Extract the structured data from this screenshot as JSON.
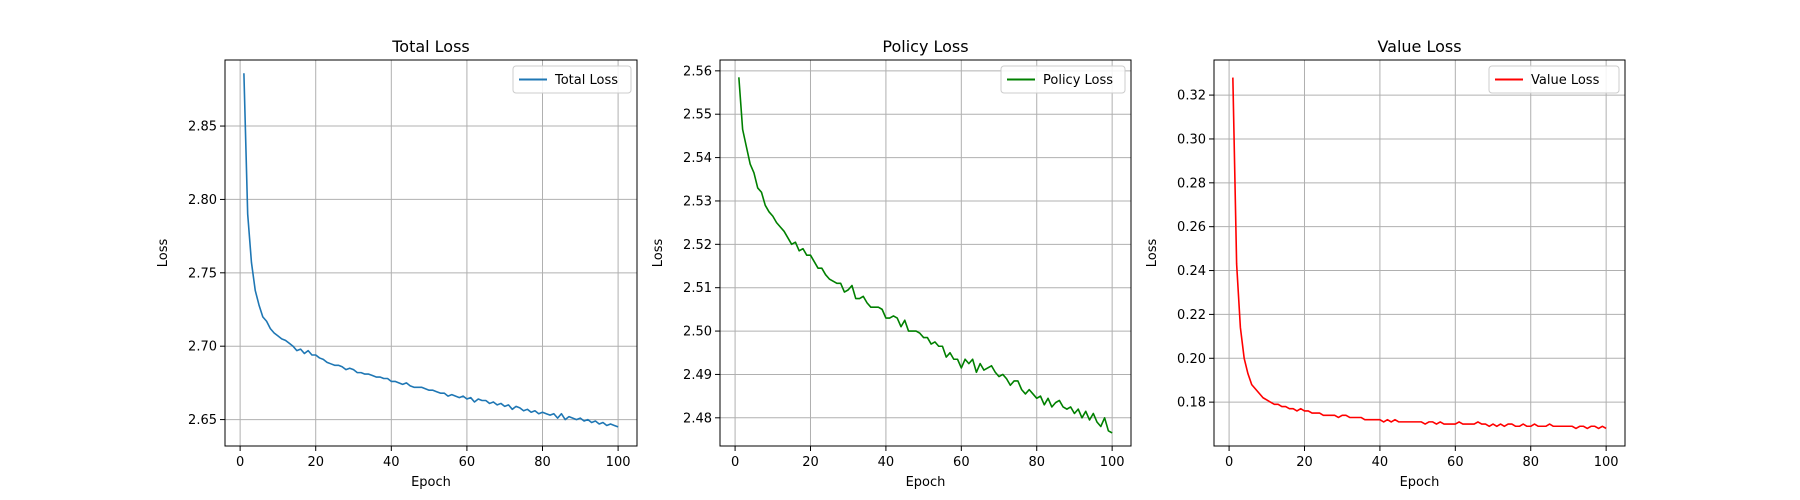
{
  "chart_data": [
    {
      "type": "line",
      "title": "Total Loss",
      "xlabel": "Epoch",
      "ylabel": "Loss",
      "xlim": [
        -4,
        105
      ],
      "ylim": [
        2.632,
        2.895
      ],
      "xticks": [
        0,
        20,
        40,
        60,
        80,
        100
      ],
      "yticks": [
        2.65,
        2.7,
        2.75,
        2.8,
        2.85
      ],
      "ytick_labels": [
        "2.65",
        "2.70",
        "2.75",
        "2.80",
        "2.85"
      ],
      "grid": true,
      "legend_position": "top-right",
      "series": [
        {
          "name": "Total Loss",
          "color": "#1f77b4",
          "x": [
            1,
            2,
            3,
            4,
            5,
            6,
            7,
            8,
            9,
            10,
            11,
            12,
            13,
            14,
            15,
            16,
            17,
            18,
            19,
            20,
            21,
            22,
            23,
            24,
            25,
            26,
            27,
            28,
            29,
            30,
            31,
            32,
            33,
            34,
            35,
            36,
            37,
            38,
            39,
            40,
            41,
            42,
            43,
            44,
            45,
            46,
            47,
            48,
            49,
            50,
            51,
            52,
            53,
            54,
            55,
            56,
            57,
            58,
            59,
            60,
            61,
            62,
            63,
            64,
            65,
            66,
            67,
            68,
            69,
            70,
            71,
            72,
            73,
            74,
            75,
            76,
            77,
            78,
            79,
            80,
            81,
            82,
            83,
            84,
            85,
            86,
            87,
            88,
            89,
            90,
            91,
            92,
            93,
            94,
            95,
            96,
            97,
            98,
            99,
            100
          ],
          "y": [
            2.886,
            2.79,
            2.757,
            2.738,
            2.728,
            2.72,
            2.717,
            2.712,
            2.709,
            2.707,
            2.705,
            2.704,
            2.702,
            2.7,
            2.697,
            2.698,
            2.695,
            2.697,
            2.694,
            2.694,
            2.692,
            2.691,
            2.689,
            2.688,
            2.687,
            2.687,
            2.686,
            2.684,
            2.685,
            2.684,
            2.682,
            2.682,
            2.681,
            2.681,
            2.68,
            2.679,
            2.679,
            2.678,
            2.678,
            2.676,
            2.676,
            2.675,
            2.674,
            2.675,
            2.673,
            2.672,
            2.672,
            2.672,
            2.671,
            2.67,
            2.67,
            2.669,
            2.668,
            2.668,
            2.666,
            2.667,
            2.666,
            2.665,
            2.666,
            2.664,
            2.665,
            2.662,
            2.664,
            2.663,
            2.663,
            2.661,
            2.662,
            2.66,
            2.661,
            2.659,
            2.66,
            2.657,
            2.659,
            2.658,
            2.656,
            2.657,
            2.655,
            2.656,
            2.654,
            2.655,
            2.654,
            2.653,
            2.654,
            2.651,
            2.654,
            2.65,
            2.652,
            2.651,
            2.65,
            2.651,
            2.649,
            2.65,
            2.648,
            2.649,
            2.647,
            2.648,
            2.646,
            2.647,
            2.646,
            2.645
          ]
        }
      ]
    },
    {
      "type": "line",
      "title": "Policy Loss",
      "xlabel": "Epoch",
      "ylabel": "Loss",
      "xlim": [
        -4,
        105
      ],
      "ylim": [
        2.4735,
        2.5625
      ],
      "xticks": [
        0,
        20,
        40,
        60,
        80,
        100
      ],
      "yticks": [
        2.48,
        2.49,
        2.5,
        2.51,
        2.52,
        2.53,
        2.54,
        2.55,
        2.56
      ],
      "ytick_labels": [
        "2.48",
        "2.49",
        "2.50",
        "2.51",
        "2.52",
        "2.53",
        "2.54",
        "2.55",
        "2.56"
      ],
      "grid": true,
      "legend_position": "top-right",
      "series": [
        {
          "name": "Policy Loss",
          "color": "#008000",
          "x": [
            1,
            2,
            3,
            4,
            5,
            6,
            7,
            8,
            9,
            10,
            11,
            12,
            13,
            14,
            15,
            16,
            17,
            18,
            19,
            20,
            21,
            22,
            23,
            24,
            25,
            26,
            27,
            28,
            29,
            30,
            31,
            32,
            33,
            34,
            35,
            36,
            37,
            38,
            39,
            40,
            41,
            42,
            43,
            44,
            45,
            46,
            47,
            48,
            49,
            50,
            51,
            52,
            53,
            54,
            55,
            56,
            57,
            58,
            59,
            60,
            61,
            62,
            63,
            64,
            65,
            66,
            67,
            68,
            69,
            70,
            71,
            72,
            73,
            74,
            75,
            76,
            77,
            78,
            79,
            80,
            81,
            82,
            83,
            84,
            85,
            86,
            87,
            88,
            89,
            90,
            91,
            92,
            93,
            94,
            95,
            96,
            97,
            98,
            99,
            100
          ],
          "y": [
            2.5585,
            2.5465,
            2.5425,
            2.5385,
            2.5365,
            2.533,
            2.532,
            2.529,
            2.5275,
            2.5265,
            2.525,
            2.524,
            2.523,
            2.5215,
            2.52,
            2.5205,
            2.5185,
            2.519,
            2.5175,
            2.5175,
            2.516,
            2.5145,
            2.5145,
            2.513,
            2.512,
            2.5115,
            2.511,
            2.511,
            2.509,
            2.5095,
            2.5105,
            2.5075,
            2.5075,
            2.508,
            2.5065,
            2.5055,
            2.5055,
            2.5055,
            2.505,
            2.503,
            2.503,
            2.5035,
            2.503,
            2.501,
            2.5025,
            2.5,
            2.5,
            2.5,
            2.4995,
            2.4985,
            2.4985,
            2.497,
            2.4975,
            2.4965,
            2.4965,
            2.494,
            2.495,
            2.4935,
            2.4935,
            2.4915,
            2.4935,
            2.4925,
            2.4935,
            2.4905,
            2.4925,
            2.491,
            2.4915,
            2.492,
            2.4905,
            2.4895,
            2.49,
            2.489,
            2.4875,
            2.4885,
            2.4885,
            2.4865,
            2.4855,
            2.4865,
            2.4855,
            2.4845,
            2.485,
            2.483,
            2.4845,
            2.4825,
            2.4835,
            2.484,
            2.4825,
            2.482,
            2.4825,
            2.481,
            2.482,
            2.48,
            2.4815,
            2.4795,
            2.481,
            2.479,
            2.478,
            2.48,
            2.477,
            2.4765
          ]
        }
      ]
    },
    {
      "type": "line",
      "title": "Value Loss",
      "xlabel": "Epoch",
      "ylabel": "Loss",
      "xlim": [
        -4,
        105
      ],
      "ylim": [
        0.16,
        0.336
      ],
      "xticks": [
        0,
        20,
        40,
        60,
        80,
        100
      ],
      "yticks": [
        0.18,
        0.2,
        0.22,
        0.24,
        0.26,
        0.28,
        0.3,
        0.32
      ],
      "ytick_labels": [
        "0.18",
        "0.20",
        "0.22",
        "0.24",
        "0.26",
        "0.28",
        "0.30",
        "0.32"
      ],
      "grid": true,
      "legend_position": "top-right",
      "series": [
        {
          "name": "Value Loss",
          "color": "#ff0000",
          "x": [
            1,
            2,
            3,
            4,
            5,
            6,
            7,
            8,
            9,
            10,
            11,
            12,
            13,
            14,
            15,
            16,
            17,
            18,
            19,
            20,
            21,
            22,
            23,
            24,
            25,
            26,
            27,
            28,
            29,
            30,
            31,
            32,
            33,
            34,
            35,
            36,
            37,
            38,
            39,
            40,
            41,
            42,
            43,
            44,
            45,
            46,
            47,
            48,
            49,
            50,
            51,
            52,
            53,
            54,
            55,
            56,
            57,
            58,
            59,
            60,
            61,
            62,
            63,
            64,
            65,
            66,
            67,
            68,
            69,
            70,
            71,
            72,
            73,
            74,
            75,
            76,
            77,
            78,
            79,
            80,
            81,
            82,
            83,
            84,
            85,
            86,
            87,
            88,
            89,
            90,
            91,
            92,
            93,
            94,
            95,
            96,
            97,
            98,
            99,
            100
          ],
          "y": [
            0.328,
            0.243,
            0.214,
            0.2,
            0.193,
            0.188,
            0.186,
            0.184,
            0.182,
            0.181,
            0.18,
            0.179,
            0.179,
            0.178,
            0.178,
            0.177,
            0.177,
            0.176,
            0.177,
            0.176,
            0.176,
            0.175,
            0.175,
            0.175,
            0.174,
            0.174,
            0.174,
            0.174,
            0.173,
            0.174,
            0.174,
            0.173,
            0.173,
            0.173,
            0.173,
            0.172,
            0.172,
            0.172,
            0.172,
            0.172,
            0.171,
            0.172,
            0.171,
            0.172,
            0.171,
            0.171,
            0.171,
            0.171,
            0.171,
            0.171,
            0.171,
            0.17,
            0.171,
            0.171,
            0.17,
            0.171,
            0.17,
            0.17,
            0.17,
            0.17,
            0.171,
            0.17,
            0.17,
            0.17,
            0.17,
            0.171,
            0.17,
            0.17,
            0.169,
            0.17,
            0.169,
            0.17,
            0.169,
            0.17,
            0.17,
            0.169,
            0.169,
            0.17,
            0.169,
            0.169,
            0.17,
            0.169,
            0.169,
            0.169,
            0.17,
            0.169,
            0.169,
            0.169,
            0.169,
            0.169,
            0.169,
            0.168,
            0.169,
            0.169,
            0.168,
            0.169,
            0.169,
            0.168,
            0.169,
            0.168
          ]
        }
      ]
    }
  ]
}
